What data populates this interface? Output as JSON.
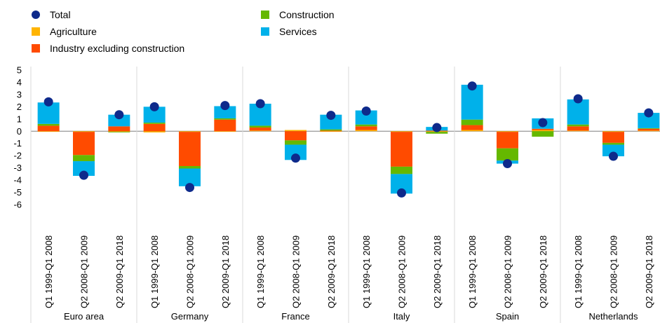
{
  "legend": {
    "total": "Total",
    "agriculture": "Agriculture",
    "industry": "Industry excluding construction",
    "construction": "Construction",
    "services": "Services"
  },
  "colors": {
    "total": "#0E2A8B",
    "agriculture": "#FFB400",
    "industry": "#FF4B00",
    "construction": "#65B800",
    "services": "#00B1EA"
  },
  "chart_data": {
    "type": "bar",
    "stacked": true,
    "ylim": [
      -6,
      5
    ],
    "yticks": [
      5,
      4,
      3,
      2,
      1,
      0,
      -1,
      -2,
      -3,
      -4,
      -5,
      -6
    ],
    "groups": [
      "Euro area",
      "Germany",
      "France",
      "Italy",
      "Spain",
      "Netherlands"
    ],
    "periods": [
      "Q1 1999-Q1 2008",
      "Q2 2008-Q1 2009",
      "Q2 2009-Q1 2018"
    ],
    "categories": [
      "Q1 1999-Q1 2008",
      "Q2 2008-Q1 2009",
      "Q2 2009-Q1 2018",
      "Q1 1999-Q1 2008",
      "Q2 2008-Q1 2009",
      "Q2 2009-Q1 2018",
      "Q1 1999-Q1 2008",
      "Q2 2008-Q1 2009",
      "Q2 2009-Q1 2018",
      "Q1 1999-Q1 2008",
      "Q2 2008-Q1 2009",
      "Q2 2009-Q1 2018",
      "Q1 1999-Q1 2008",
      "Q2 2008-Q1 2009",
      "Q2 2009-Q1 2018",
      "Q1 1999-Q1 2008",
      "Q2 2008-Q1 2009",
      "Q2 2009-Q1 2018"
    ],
    "series": [
      {
        "name": "Agriculture",
        "key": "agriculture",
        "values": [
          -0.05,
          -0.05,
          -0.05,
          -0.1,
          -0.05,
          -0.05,
          0.05,
          0.1,
          -0.05,
          0.1,
          -0.05,
          -0.05,
          0.1,
          -0.05,
          0.1,
          0.05,
          -0.05,
          0.05
        ]
      },
      {
        "name": "Industry excluding construction",
        "key": "industry",
        "values": [
          0.45,
          -1.9,
          0.4,
          0.6,
          -2.8,
          0.95,
          0.25,
          -0.75,
          0.05,
          0.3,
          -2.85,
          0.05,
          0.4,
          -1.35,
          0.1,
          0.35,
          -0.9,
          0.15
        ]
      },
      {
        "name": "Construction",
        "key": "construction",
        "values": [
          0.15,
          -0.5,
          -0.05,
          0.1,
          -0.2,
          0.1,
          0.15,
          -0.35,
          0.1,
          0.15,
          -0.6,
          -0.15,
          0.45,
          -1.0,
          -0.45,
          0.15,
          -0.15,
          0.05
        ]
      },
      {
        "name": "Services",
        "key": "services",
        "values": [
          1.75,
          -1.2,
          0.95,
          1.3,
          -1.45,
          1.0,
          1.8,
          -1.25,
          1.2,
          1.15,
          -1.6,
          0.3,
          2.85,
          -0.25,
          0.85,
          2.05,
          -0.95,
          1.25
        ]
      }
    ],
    "total": {
      "name": "Total",
      "values": [
        2.4,
        -3.6,
        1.35,
        2.0,
        -4.6,
        2.1,
        2.25,
        -2.2,
        1.3,
        1.65,
        -5.05,
        0.3,
        3.7,
        -2.65,
        0.7,
        2.65,
        -2.05,
        1.5
      ]
    }
  }
}
